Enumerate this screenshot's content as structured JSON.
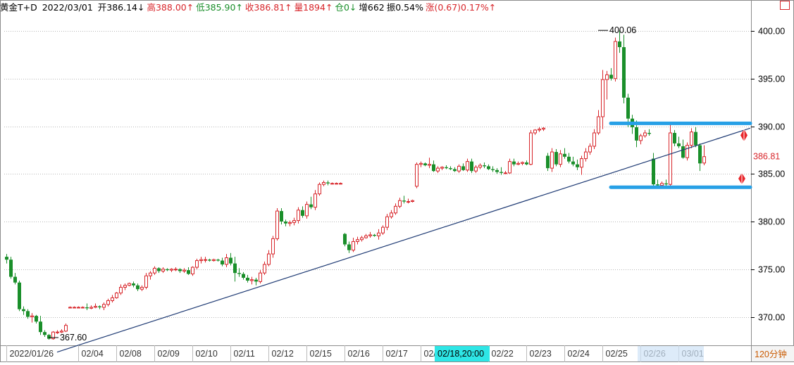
{
  "header": {
    "instrument": "黄金T+D",
    "date": "2022/03/01",
    "fields": [
      {
        "label": "开",
        "value": "386.14",
        "arrow": "↓",
        "tone": "neutral"
      },
      {
        "label": "高",
        "value": "388.00",
        "arrow": "↑",
        "tone": "up"
      },
      {
        "label": "低",
        "value": "385.90",
        "arrow": "↑",
        "tone": "down"
      },
      {
        "label": "收",
        "value": "386.81",
        "arrow": "↑",
        "tone": "up"
      },
      {
        "label": "量",
        "value": "1894",
        "arrow": "↑",
        "tone": "up"
      },
      {
        "label": "仓",
        "value": "0",
        "arrow": "↓",
        "tone": "down"
      },
      {
        "label": "增",
        "value": "662",
        "arrow": "",
        "tone": "neutral"
      },
      {
        "label": "振",
        "value": "0.54%",
        "arrow": "",
        "tone": "neutral"
      },
      {
        "label": "涨",
        "value": "(0.67)0.17%",
        "arrow": "↑",
        "tone": "up"
      }
    ]
  },
  "corner_box_icon": "square-outline-icon",
  "period_label": "120分钟",
  "cursor_time_label": "02/18,20:00",
  "last_price_label": "386.81",
  "max_label": "400.06",
  "min_label": "367.60",
  "colors": {
    "up": "#d8262b",
    "down": "#1a8f2a",
    "trendline": "#1f3b74",
    "channel": "#27a0e6",
    "signal_arrow": "#e8262b",
    "cursor_bg": "#2ee6e6",
    "grid": "#b8b8b8"
  },
  "chart_data": {
    "type": "candlestick",
    "ylim": [
      367.0,
      402.0
    ],
    "y_ticks": [
      "400.00",
      "395.00",
      "390.00",
      "385.00",
      "380.00",
      "375.00",
      "370.00"
    ],
    "y_tick_values": [
      400,
      395,
      390,
      385,
      380,
      375,
      370
    ],
    "x_labels": [
      {
        "label": "2022/01/26",
        "index": 0
      },
      {
        "label": "02/04",
        "index": 17
      },
      {
        "label": "02/08",
        "index": 26
      },
      {
        "label": "02/09",
        "index": 35
      },
      {
        "label": "02/10",
        "index": 44
      },
      {
        "label": "02/11",
        "index": 53
      },
      {
        "label": "02/12",
        "index": 62
      },
      {
        "label": "02/15",
        "index": 71
      },
      {
        "label": "02/16",
        "index": 80
      },
      {
        "label": "02/17",
        "index": 89
      },
      {
        "label": "02/18",
        "index": 98
      },
      {
        "label": "02/22",
        "index": 114
      },
      {
        "label": "02/23",
        "index": 123
      },
      {
        "label": "02/24",
        "index": 132
      },
      {
        "label": "02/25",
        "index": 141
      },
      {
        "label": "02/26",
        "index": 150
      },
      {
        "label": "03/01",
        "index": 159
      }
    ],
    "candles": [
      [
        376.3,
        376.6,
        375.6,
        376.0
      ],
      [
        376.0,
        376.3,
        374.0,
        374.2
      ],
      [
        374.2,
        374.6,
        373.4,
        373.6
      ],
      [
        373.6,
        373.8,
        370.6,
        370.8
      ],
      [
        370.8,
        371.1,
        370.2,
        370.6
      ],
      [
        370.6,
        370.8,
        369.8,
        370.0
      ],
      [
        370.0,
        370.4,
        369.4,
        370.1
      ],
      [
        370.1,
        370.2,
        369.3,
        369.5
      ],
      [
        369.5,
        370.1,
        368.1,
        368.4
      ],
      [
        368.4,
        368.6,
        367.9,
        368.1
      ],
      [
        368.1,
        368.2,
        367.6,
        367.7
      ],
      [
        367.7,
        368.5,
        367.6,
        368.4
      ],
      [
        368.4,
        368.6,
        368.2,
        368.4
      ],
      [
        368.4,
        368.7,
        368.3,
        368.5
      ],
      [
        368.5,
        369.3,
        368.4,
        369.1
      ],
      [
        371.0,
        371.1,
        371.0,
        371.0
      ],
      [
        371.0,
        371.1,
        371.0,
        371.0
      ],
      [
        371.0,
        371.1,
        371.0,
        371.0
      ],
      [
        371.0,
        371.1,
        370.9,
        371.0
      ],
      [
        371.0,
        371.4,
        370.7,
        370.9
      ],
      [
        370.9,
        371.2,
        370.8,
        371.0
      ],
      [
        371.0,
        371.4,
        370.9,
        371.1
      ],
      [
        371.1,
        371.2,
        370.8,
        371.0
      ],
      [
        371.0,
        371.5,
        370.7,
        371.3
      ],
      [
        371.3,
        371.9,
        371.1,
        371.7
      ],
      [
        371.7,
        372.3,
        371.5,
        372.0
      ],
      [
        372.0,
        372.6,
        371.9,
        372.5
      ],
      [
        372.5,
        373.4,
        372.3,
        373.1
      ],
      [
        373.1,
        373.5,
        372.8,
        373.3
      ],
      [
        373.3,
        373.6,
        373.2,
        373.5
      ],
      [
        373.5,
        373.7,
        373.1,
        373.3
      ],
      [
        373.3,
        373.5,
        372.7,
        372.9
      ],
      [
        372.9,
        373.3,
        372.7,
        373.1
      ],
      [
        373.1,
        374.6,
        372.9,
        374.3
      ],
      [
        374.3,
        374.8,
        373.9,
        374.6
      ],
      [
        374.6,
        375.3,
        374.4,
        375.1
      ],
      [
        375.1,
        375.2,
        374.6,
        374.8
      ],
      [
        374.8,
        375.2,
        374.6,
        375.0
      ],
      [
        375.0,
        375.1,
        374.8,
        374.9
      ],
      [
        374.9,
        375.1,
        374.7,
        375.0
      ],
      [
        375.0,
        375.2,
        374.8,
        375.0
      ],
      [
        375.0,
        375.1,
        374.6,
        374.8
      ],
      [
        374.8,
        375.1,
        374.6,
        374.9
      ],
      [
        374.9,
        375.2,
        374.4,
        374.5
      ],
      [
        374.5,
        375.3,
        374.3,
        375.2
      ],
      [
        375.2,
        376.1,
        375.0,
        375.9
      ],
      [
        375.9,
        376.3,
        375.6,
        376.0
      ],
      [
        376.0,
        376.3,
        375.7,
        376.0
      ],
      [
        376.0,
        376.1,
        375.8,
        375.9
      ],
      [
        375.9,
        376.1,
        375.8,
        376.0
      ],
      [
        376.0,
        376.1,
        375.8,
        375.9
      ],
      [
        375.9,
        376.2,
        375.3,
        375.5
      ],
      [
        375.5,
        376.6,
        375.2,
        376.2
      ],
      [
        376.2,
        376.7,
        375.4,
        375.6
      ],
      [
        375.6,
        376.3,
        373.7,
        374.6
      ],
      [
        374.6,
        375.1,
        374.2,
        374.5
      ],
      [
        374.5,
        374.7,
        373.9,
        374.1
      ],
      [
        374.1,
        374.4,
        373.6,
        373.8
      ],
      [
        373.8,
        374.2,
        373.4,
        373.9
      ],
      [
        373.9,
        374.1,
        373.3,
        373.7
      ],
      [
        373.7,
        374.9,
        373.5,
        374.6
      ],
      [
        374.6,
        375.8,
        374.4,
        375.5
      ],
      [
        375.5,
        377.0,
        375.3,
        376.6
      ],
      [
        376.6,
        378.5,
        376.2,
        378.2
      ],
      [
        378.2,
        381.4,
        378.0,
        381.1
      ],
      [
        381.1,
        381.4,
        379.7,
        380.0
      ],
      [
        380.0,
        380.2,
        379.5,
        379.8
      ],
      [
        379.8,
        380.1,
        379.5,
        379.9
      ],
      [
        379.9,
        380.4,
        379.6,
        380.1
      ],
      [
        380.1,
        381.5,
        379.8,
        381.2
      ],
      [
        381.2,
        381.6,
        380.4,
        380.6
      ],
      [
        380.6,
        382.1,
        380.3,
        381.8
      ],
      [
        381.8,
        382.6,
        381.3,
        381.5
      ],
      [
        381.5,
        383.3,
        381.2,
        382.9
      ],
      [
        382.9,
        384.1,
        382.7,
        383.9
      ],
      [
        383.9,
        384.3,
        383.7,
        384.1
      ],
      [
        384.1,
        384.3,
        383.8,
        384.0
      ],
      [
        384.0,
        384.1,
        383.9,
        384.0
      ],
      [
        384.0,
        384.1,
        383.9,
        384.0
      ],
      [
        384.0,
        384.1,
        383.9,
        384.0
      ],
      [
        378.7,
        378.8,
        377.4,
        377.6
      ],
      [
        377.6,
        377.9,
        376.7,
        377.0
      ],
      [
        377.0,
        378.3,
        376.8,
        377.9
      ],
      [
        377.9,
        378.4,
        377.6,
        378.1
      ],
      [
        378.1,
        378.5,
        377.9,
        378.3
      ],
      [
        378.3,
        378.7,
        378.2,
        378.5
      ],
      [
        378.5,
        378.9,
        378.3,
        378.6
      ],
      [
        378.6,
        378.7,
        378.4,
        378.5
      ],
      [
        378.5,
        379.2,
        378.1,
        378.8
      ],
      [
        378.8,
        379.6,
        378.6,
        379.4
      ],
      [
        379.4,
        380.8,
        379.1,
        380.5
      ],
      [
        380.5,
        381.2,
        380.3,
        380.9
      ],
      [
        380.9,
        381.9,
        380.7,
        381.6
      ],
      [
        381.6,
        382.5,
        381.4,
        382.2
      ],
      [
        382.2,
        382.7,
        381.9,
        382.1
      ],
      [
        382.1,
        382.4,
        381.9,
        382.1
      ],
      [
        382.1,
        382.3,
        382.0,
        382.2
      ],
      [
        383.7,
        386.2,
        383.5,
        386.0
      ],
      [
        386.0,
        386.3,
        385.7,
        386.1
      ],
      [
        386.1,
        386.2,
        385.8,
        385.9
      ],
      [
        385.9,
        386.7,
        385.6,
        386.0
      ],
      [
        386.0,
        386.4,
        385.2,
        385.3
      ],
      [
        385.3,
        385.8,
        385.1,
        385.6
      ],
      [
        385.6,
        385.8,
        385.4,
        385.7
      ],
      [
        385.7,
        385.9,
        385.5,
        385.6
      ],
      [
        385.6,
        385.8,
        385.4,
        385.5
      ],
      [
        385.5,
        385.7,
        385.2,
        385.3
      ],
      [
        385.3,
        386.0,
        385.1,
        385.8
      ],
      [
        385.8,
        386.1,
        385.3,
        385.4
      ],
      [
        385.4,
        386.6,
        385.2,
        386.3
      ],
      [
        386.3,
        386.6,
        385.1,
        385.3
      ],
      [
        385.3,
        385.9,
        385.1,
        385.7
      ],
      [
        385.7,
        386.1,
        385.5,
        385.9
      ],
      [
        385.9,
        386.2,
        385.6,
        385.8
      ],
      [
        385.8,
        386.0,
        385.4,
        385.5
      ],
      [
        385.5,
        385.8,
        385.2,
        385.4
      ],
      [
        385.4,
        385.6,
        385.0,
        385.2
      ],
      [
        385.2,
        385.7,
        384.9,
        385.1
      ],
      [
        385.1,
        385.3,
        385.0,
        385.1
      ],
      [
        385.1,
        386.6,
        385.0,
        386.3
      ],
      [
        386.3,
        386.6,
        385.8,
        386.0
      ],
      [
        386.0,
        386.3,
        385.9,
        386.1
      ],
      [
        386.1,
        386.3,
        385.9,
        386.2
      ],
      [
        386.2,
        386.4,
        385.9,
        386.0
      ],
      [
        386.0,
        389.6,
        385.9,
        389.3
      ],
      [
        389.3,
        389.7,
        389.1,
        389.6
      ],
      [
        389.6,
        389.9,
        389.4,
        389.7
      ],
      [
        389.7,
        389.9,
        389.5,
        389.8
      ],
      [
        386.9,
        387.2,
        385.3,
        385.6
      ],
      [
        385.6,
        387.7,
        385.2,
        387.3
      ],
      [
        387.3,
        387.6,
        385.8,
        386.0
      ],
      [
        386.0,
        387.5,
        385.7,
        387.1
      ],
      [
        387.1,
        387.7,
        386.6,
        386.8
      ],
      [
        386.8,
        387.2,
        386.1,
        386.3
      ],
      [
        386.3,
        386.8,
        385.8,
        386.0
      ],
      [
        386.0,
        386.5,
        385.4,
        385.7
      ],
      [
        385.7,
        386.9,
        384.9,
        386.6
      ],
      [
        386.6,
        387.7,
        386.3,
        387.3
      ],
      [
        387.3,
        388.2,
        387.0,
        387.9
      ],
      [
        387.9,
        389.7,
        387.6,
        389.3
      ],
      [
        389.3,
        391.7,
        389.1,
        391.0
      ],
      [
        391.0,
        395.9,
        389.7,
        394.9
      ],
      [
        394.9,
        395.8,
        392.8,
        395.4
      ],
      [
        395.4,
        396.1,
        394.8,
        395.0
      ],
      [
        395.0,
        399.3,
        394.7,
        398.9
      ],
      [
        398.9,
        400.06,
        397.7,
        398.3
      ],
      [
        398.3,
        399.6,
        392.4,
        393.0
      ],
      [
        393.0,
        393.4,
        389.9,
        390.8
      ],
      [
        390.8,
        391.2,
        389.2,
        389.9
      ],
      [
        389.9,
        390.6,
        387.8,
        388.5
      ],
      [
        388.5,
        389.2,
        388.1,
        389.0
      ],
      [
        389.0,
        389.6,
        388.8,
        389.3
      ],
      [
        389.3,
        389.7,
        389.0,
        389.2
      ],
      [
        386.6,
        387.2,
        383.7,
        383.9
      ],
      [
        383.9,
        384.4,
        383.5,
        383.8
      ],
      [
        383.8,
        384.2,
        383.6,
        384.0
      ],
      [
        384.0,
        384.4,
        383.6,
        383.9
      ],
      [
        383.9,
        390.2,
        383.7,
        389.3
      ],
      [
        389.3,
        389.6,
        387.9,
        388.2
      ],
      [
        388.2,
        388.9,
        387.7,
        387.9
      ],
      [
        387.9,
        388.6,
        386.6,
        386.7
      ],
      [
        386.7,
        388.3,
        386.4,
        388.0
      ],
      [
        388.0,
        389.8,
        387.7,
        389.4
      ],
      [
        389.4,
        389.9,
        387.8,
        388.0
      ],
      [
        388.0,
        388.2,
        385.3,
        386.1
      ],
      [
        386.14,
        388.0,
        385.9,
        386.81
      ]
    ],
    "annotations": {
      "trendline": {
        "from": [
          12,
          366.3
        ],
        "to": [
          176,
          389.8
        ]
      },
      "channel_top": {
        "from": [
          143,
          390.3
        ],
        "to": [
          176,
          390.3
        ]
      },
      "channel_bottom": {
        "from": [
          143,
          383.6
        ],
        "to": [
          176,
          383.6
        ]
      },
      "max": {
        "index": 140,
        "value": 400.06
      },
      "min": {
        "index": 10,
        "value": 367.6
      },
      "cursor_index": 102
    }
  }
}
